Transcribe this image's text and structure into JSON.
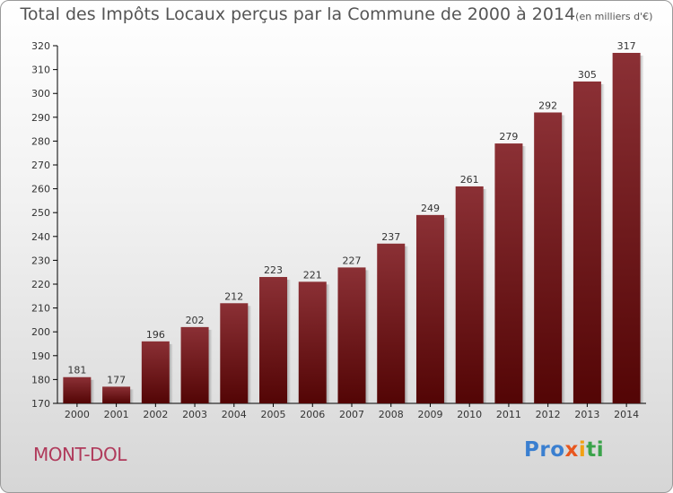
{
  "title": "Total des Impôts Locaux perçus par la Commune de 2000 à 2014",
  "title_unit": "(en milliers d'€)",
  "commune": "MONT-DOL",
  "logo": {
    "p1": "Pro",
    "p2": "x",
    "p3": "i",
    "p4": "ti"
  },
  "colors": {
    "bar_light": "#8b3035",
    "bar_dark": "#530505",
    "commune": "#b03a5b"
  },
  "chart_data": {
    "type": "bar",
    "title": "Total des Impôts Locaux perçus par la Commune de 2000 à 2014",
    "xlabel": "",
    "ylabel": "",
    "categories": [
      "2000",
      "2001",
      "2002",
      "2003",
      "2004",
      "2005",
      "2006",
      "2007",
      "2008",
      "2009",
      "2010",
      "2011",
      "2012",
      "2013",
      "2014"
    ],
    "values": [
      181,
      177,
      196,
      202,
      212,
      223,
      221,
      227,
      237,
      249,
      261,
      279,
      292,
      305,
      317
    ],
    "ylim": [
      170,
      320
    ],
    "yticks": [
      170,
      180,
      190,
      200,
      210,
      220,
      230,
      240,
      250,
      260,
      270,
      280,
      290,
      300,
      310,
      320
    ],
    "grid": false
  }
}
